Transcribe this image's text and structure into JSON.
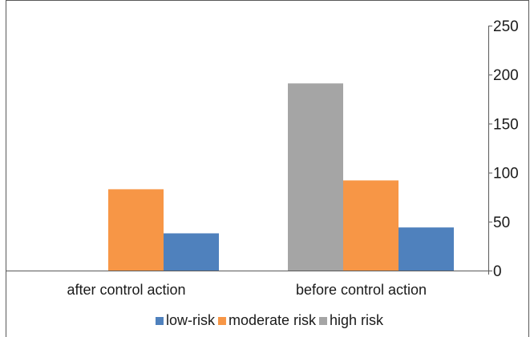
{
  "chart_data": {
    "type": "bar",
    "title": "",
    "xlabel": "",
    "ylabel": "",
    "categories": [
      "after control action",
      "before control action"
    ],
    "series": [
      {
        "name": "high risk",
        "color": "#a5a5a5",
        "values": [
          0,
          191
        ]
      },
      {
        "name": "moderate risk",
        "color": "#f79646",
        "values": [
          83,
          92
        ]
      },
      {
        "name": "low-risk",
        "color": "#4f81bd",
        "values": [
          38,
          44
        ]
      }
    ],
    "legend_order": [
      "low-risk",
      "moderate risk",
      "high risk"
    ],
    "ylim": [
      0,
      250
    ],
    "yticks": [
      "0",
      "50",
      "100",
      "150",
      "200",
      "250"
    ],
    "y_axis_side": "right",
    "grid": false,
    "legend_position": "bottom"
  }
}
